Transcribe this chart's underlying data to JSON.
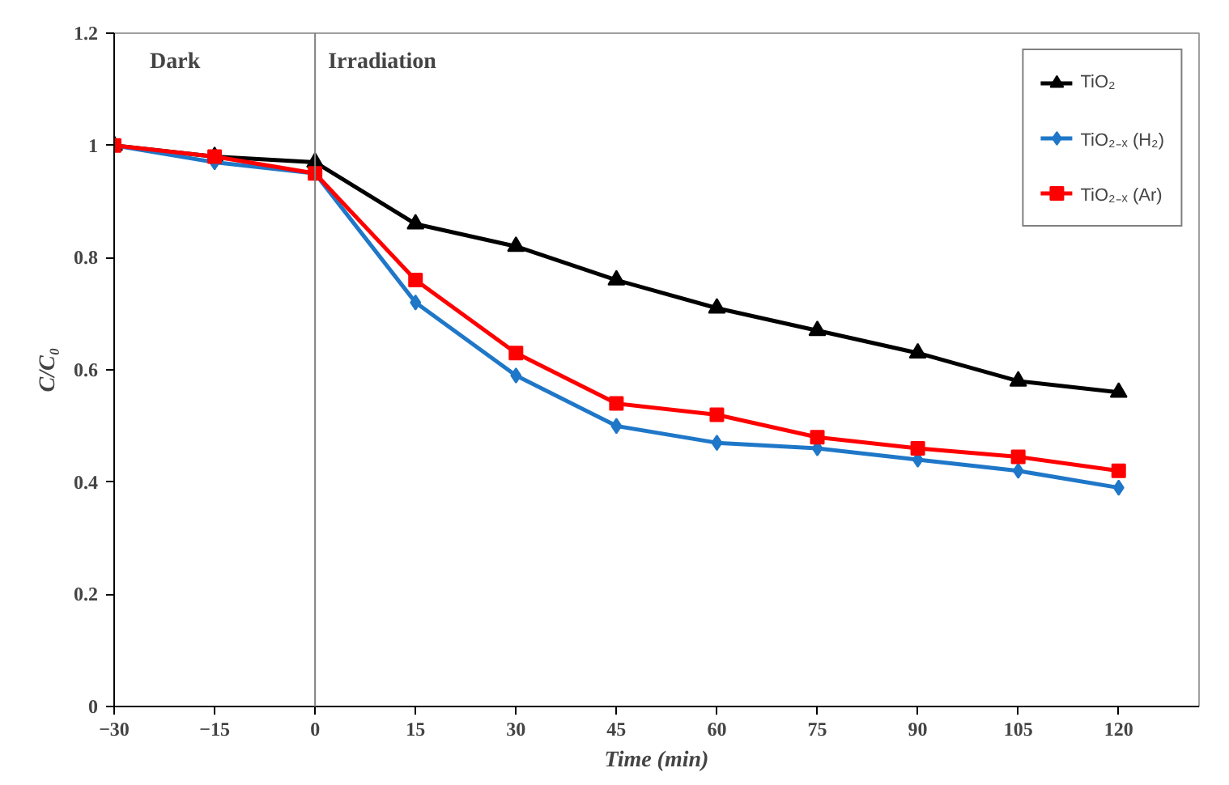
{
  "chart_data": {
    "type": "line",
    "xlabel": "Time (min)",
    "ylabel": "C/C₀",
    "x": [
      -30,
      -15,
      0,
      15,
      30,
      45,
      60,
      75,
      90,
      105,
      120
    ],
    "xlim": [
      -30,
      132
    ],
    "xticks": [
      -30,
      -15,
      0,
      15,
      30,
      45,
      60,
      75,
      90,
      105,
      120
    ],
    "ylim": [
      0,
      1.2
    ],
    "yticks": [
      0,
      {
        "value": 0.2,
        "label": "0.2"
      },
      {
        "value": 0.4,
        "label": "0.4"
      },
      {
        "value": 0.6,
        "label": "0.6"
      },
      {
        "value": 0.8,
        "label": "0.8"
      },
      1,
      {
        "value": 1.2,
        "label": "1.2"
      }
    ],
    "series": [
      {
        "name": "TiO₂",
        "color": "#000000",
        "marker": "triangle",
        "values": [
          1,
          0.98,
          0.97,
          0.86,
          0.82,
          0.76,
          0.71,
          0.67,
          0.63,
          0.58,
          0.56
        ]
      },
      {
        "name": "TiO₂₋ₓ (H₂)",
        "color": "#1f77c8",
        "marker": "diamond",
        "values": [
          1,
          0.97,
          0.95,
          0.72,
          0.59,
          0.5,
          0.47,
          0.46,
          0.44,
          0.42,
          0.39
        ]
      },
      {
        "name": "TiO₂₋ₓ (Ar)",
        "color": "#ff0000",
        "marker": "square",
        "values": [
          1,
          0.98,
          0.95,
          0.76,
          0.63,
          0.54,
          0.52,
          0.48,
          0.46,
          0.445,
          0.42
        ]
      }
    ],
    "ref_lines": [
      {
        "axis": "x",
        "value": 0,
        "color": "#808080"
      }
    ],
    "annotations": [
      "Dark",
      "Irradiation"
    ],
    "legend": "top right",
    "grid": false,
    "line_style": "solid"
  }
}
